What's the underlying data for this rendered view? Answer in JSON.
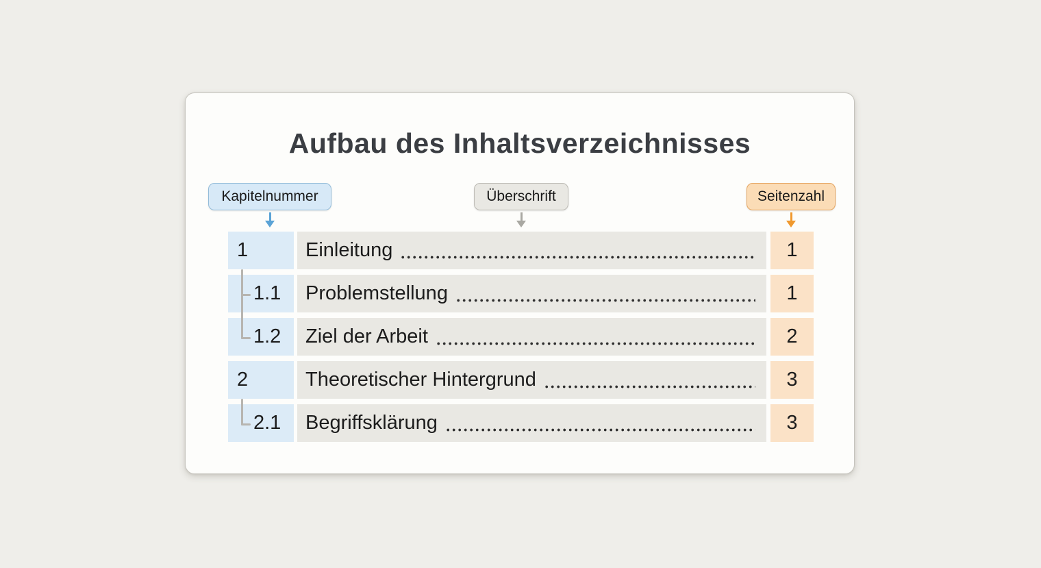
{
  "title": "Aufbau des Inhaltsverzeichnisses",
  "column_labels": [
    {
      "label": "Kapitelnummer",
      "fill": "#d7e9f7",
      "border": "#93bcd9",
      "arrow_color": "#5ba3d6"
    },
    {
      "label": "Überschrift",
      "fill": "#e9e8e3",
      "border": "#bcbab4",
      "arrow_color": "#a9a8a2"
    },
    {
      "label": "Seitenzahl",
      "fill": "#fbdcb6",
      "border": "#e5a45f",
      "arrow_color": "#f0992f"
    }
  ],
  "toc_rows": [
    {
      "number": "1",
      "heading": "Einleitung",
      "page": "1",
      "level": 1
    },
    {
      "number": "1.1",
      "heading": "Problemstellung",
      "page": "1",
      "level": 2
    },
    {
      "number": "1.2",
      "heading": "Ziel der Arbeit",
      "page": "2",
      "level": 2
    },
    {
      "number": "2",
      "heading": "Theoretischer Hintergrund",
      "page": "3",
      "level": 1
    },
    {
      "number": "2.1",
      "heading": "Begriffsklärung",
      "page": "3",
      "level": 2
    }
  ],
  "colors": {
    "page_background": "#efeeea",
    "card_background": "#fdfdfb",
    "title_text": "#3b3e43",
    "number_cell": "#dcebf7",
    "heading_cell": "#e9e8e3",
    "page_cell": "#fbe2c7",
    "connector": "#b7b5b0"
  }
}
